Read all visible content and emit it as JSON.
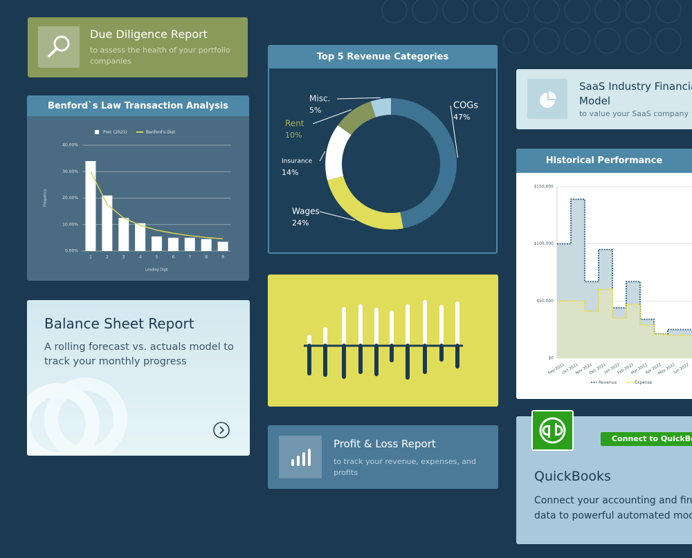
{
  "due_diligence": {
    "title": "Due Diligence Report",
    "subtitle": "to assess the health of your portfolio companies"
  },
  "benford": {
    "title": "Benford`s Law Transaction Analysis",
    "chart": {
      "type": "bar",
      "categories": [
        "1",
        "2",
        "3",
        "4",
        "5",
        "6",
        "7",
        "8",
        "9"
      ],
      "series": [
        {
          "name": "Prec (2021)",
          "type": "bar",
          "color": "#ffffff",
          "values": [
            34,
            21,
            12.5,
            10.5,
            5.5,
            5,
            5,
            4.5,
            3.5
          ]
        },
        {
          "name": "Benford's Dist",
          "type": "line",
          "color": "#d8d356",
          "values": [
            30.1,
            17.6,
            12.5,
            9.7,
            7.9,
            6.7,
            5.8,
            5.1,
            4.6
          ]
        }
      ],
      "ylim": [
        0,
        40
      ],
      "yticks": [
        {
          "value": 0,
          "label": "0.00%"
        },
        {
          "value": 10,
          "label": "10.00%"
        },
        {
          "value": 20,
          "label": "20.00%"
        },
        {
          "value": 30,
          "label": "30.00%"
        },
        {
          "value": 40,
          "label": "40.00%"
        }
      ],
      "xlabel": "Leading Digit",
      "ylabel": "Frequency",
      "grid": true
    }
  },
  "revenue_categories": {
    "title": "Top 5 Revenue Categories",
    "chart": {
      "type": "pie",
      "categories": [
        "COGs",
        "Wages",
        "Insurance",
        "Rent",
        "Misc."
      ],
      "values": [
        47,
        24,
        14,
        10,
        5
      ],
      "value_labels": [
        "47%",
        "24%",
        "14%",
        "10%",
        "5%"
      ],
      "colors": [
        "#3f7394",
        "#e0dd5a",
        "#ffffff",
        "#86955a",
        "#a9d0e2"
      ]
    }
  },
  "profit_loss": {
    "title": "Profit & Loss Report",
    "subtitle": "to track your revenue, expenses, and profits"
  },
  "saas": {
    "title": "SaaS Industry Financial Model",
    "subtitle": "to value your SaaS company"
  },
  "historical": {
    "title": "Historical Performance",
    "chart": {
      "type": "area",
      "categories": [
        "Sep 2021",
        "Oct 2021",
        "Nov 2021",
        "Dec 2021",
        "Jan 2022",
        "Feb 2022",
        "Mar 2022",
        "Apr 2022",
        "May 2022",
        "Jun 2022"
      ],
      "series": [
        {
          "name": "Revenue",
          "color": "#3e6b8a",
          "fill": "#c8d9e0",
          "values": [
            100000,
            139000,
            67000,
            95000,
            44000,
            67000,
            34000,
            21000,
            25000,
            25000
          ]
        },
        {
          "name": "Expense",
          "color": "#e3dc4a",
          "fill": "#dfe3c2",
          "values": [
            50000,
            50000,
            41000,
            60000,
            35000,
            47000,
            29000,
            21000,
            20000,
            20000
          ]
        }
      ],
      "ylim": [
        0,
        150000
      ],
      "yticks": [
        {
          "value": 0,
          "label": "$0"
        },
        {
          "value": 50000,
          "label": "$50,000"
        },
        {
          "value": 100000,
          "label": "$100,000"
        },
        {
          "value": 150000,
          "label": "$150,000"
        }
      ],
      "grid": true
    }
  },
  "balance_sheet": {
    "title": "Balance Sheet Report",
    "subtitle": "A rolling forecast vs. actuals model to track your monthly progress"
  },
  "quickbooks": {
    "title": "QuickBooks",
    "button": "Connect to QuickBooks",
    "description": "Connect your accounting and financial data to powerful automated models"
  }
}
